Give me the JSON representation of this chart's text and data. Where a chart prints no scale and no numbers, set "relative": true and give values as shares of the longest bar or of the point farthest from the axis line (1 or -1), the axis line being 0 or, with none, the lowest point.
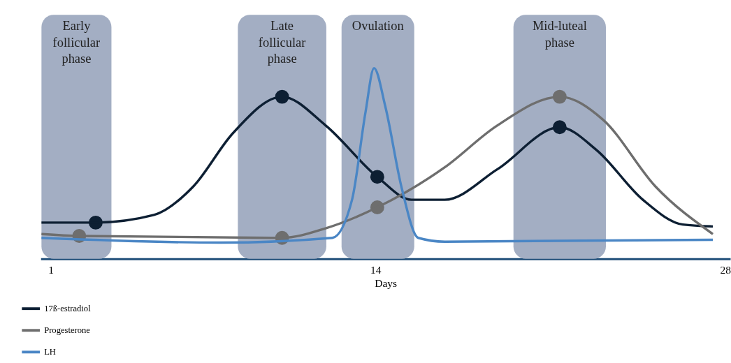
{
  "chart_data": {
    "type": "line",
    "relative": true,
    "xlabel": "Days",
    "xlim": [
      0.6,
      28.2
    ],
    "xticks": [
      1,
      14,
      28
    ],
    "grid": false,
    "legend": "bottom left",
    "line_style": "solid",
    "bands": [
      {
        "axis": "x",
        "from": 0.63,
        "to": 3.43,
        "label": "Early\nfollicular\nphase",
        "color": "#a3aec3"
      },
      {
        "axis": "x",
        "from": 8.49,
        "to": 12.03,
        "label": "Late\nfollicular\nphase",
        "color": "#a3aec3"
      },
      {
        "axis": "x",
        "from": 12.64,
        "to": 15.55,
        "label": "Ovulation",
        "color": "#a3aec3"
      },
      {
        "axis": "x",
        "from": 19.52,
        "to": 23.22,
        "label": "Mid-luteal\nphase",
        "color": "#a3aec3"
      }
    ],
    "series": [
      {
        "name": "17ß-estradiol",
        "color": "#0d1f33",
        "x": [
          0.63,
          2.8,
          5.13,
          6.71,
          8.3,
          10.26,
          12.0,
          14.07,
          15.44,
          16.77,
          18.88,
          21.37,
          22.85,
          24.7,
          26.3,
          27.5
        ],
        "values": [
          0.19,
          0.19,
          0.23,
          0.38,
          0.66,
          0.85,
          0.7,
          0.43,
          0.31,
          0.31,
          0.47,
          0.69,
          0.57,
          0.31,
          0.18,
          0.17
        ]
      },
      {
        "name": "Progesterone",
        "color": "#6e6e6e",
        "x": [
          0.63,
          2.14,
          10.26,
          12.0,
          14.07,
          16.77,
          18.88,
          21.37,
          23.1,
          25.2,
          27.5
        ],
        "values": [
          0.13,
          0.12,
          0.11,
          0.16,
          0.27,
          0.48,
          0.7,
          0.85,
          0.73,
          0.38,
          0.13
        ]
      },
      {
        "name": "LH",
        "color": "#4a86c5",
        "x": [
          0.63,
          7.77,
          12.27,
          13.06,
          13.6,
          13.94,
          14.39,
          15.05,
          15.71,
          16.77,
          27.5
        ],
        "values": [
          0.11,
          0.085,
          0.11,
          0.31,
          0.77,
          1.0,
          0.8,
          0.37,
          0.11,
          0.09,
          0.1
        ]
      },
      {
        "type": "scatter",
        "marker": "circle",
        "color": "#0d1f33",
        "x": [
          2.8,
          10.26,
          14.07,
          21.37
        ],
        "values": [
          0.19,
          0.85,
          0.43,
          0.69
        ]
      },
      {
        "type": "scatter",
        "marker": "circle",
        "color": "#6e6e6e",
        "x": [
          2.14,
          10.26,
          14.07,
          21.37
        ],
        "values": [
          0.12,
          0.11,
          0.27,
          0.85
        ]
      }
    ]
  }
}
